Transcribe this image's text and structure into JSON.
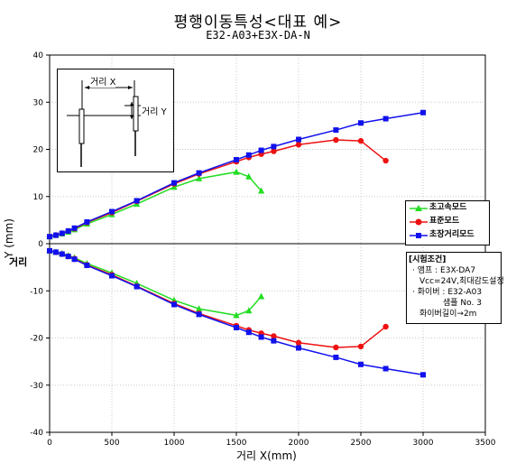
{
  "title": "평행이동특성<대표 예>",
  "subtitle": "E32-A03+E3X-DA-N",
  "chart_data": {
    "type": "line",
    "xlabel": "거리 X(mm)",
    "ylabel": "Y (mm)",
    "ylabel_extra": "거리",
    "xlim": [
      0,
      3500
    ],
    "ylim": [
      -40,
      40
    ],
    "x_ticks": [
      "0",
      "500",
      "1000",
      "1500",
      "2000",
      "2500",
      "3000",
      "3500"
    ],
    "y_ticks": [
      "40",
      "30",
      "20",
      "10",
      "0",
      "-10",
      "-20",
      "-30",
      "-40"
    ],
    "grid": true,
    "legend_position": "right",
    "series": [
      {
        "name": "초고속모드",
        "color": "#22dd22",
        "marker": "triangle",
        "x": [
          0,
          50,
          100,
          150,
          200,
          300,
          500,
          700,
          1000,
          1200,
          1500,
          1600,
          1700
        ],
        "y_upper": [
          1.5,
          1.8,
          2.1,
          2.5,
          3,
          4.2,
          6.2,
          8.4,
          12,
          13.8,
          15.2,
          14.2,
          11.2
        ],
        "y_lower": [
          -1.5,
          -1.8,
          -2.1,
          -2.5,
          -3,
          -4.2,
          -6.2,
          -8.4,
          -12,
          -13.8,
          -15.2,
          -14.2,
          -11.2
        ]
      },
      {
        "name": "표준모드",
        "color": "#ee1111",
        "marker": "circle",
        "x": [
          0,
          50,
          100,
          150,
          200,
          300,
          500,
          700,
          1000,
          1200,
          1500,
          1600,
          1700,
          1800,
          2000,
          2300,
          2500,
          2700
        ],
        "y_upper": [
          1.5,
          1.8,
          2.2,
          2.7,
          3.2,
          4.5,
          6.6,
          9,
          12.7,
          14.8,
          17.4,
          18.3,
          19,
          19.6,
          21,
          22,
          21.8,
          17.6
        ],
        "y_lower": [
          -1.5,
          -1.8,
          -2.2,
          -2.7,
          -3.2,
          -4.5,
          -6.6,
          -9,
          -12.7,
          -14.8,
          -17.4,
          -18.3,
          -19,
          -19.6,
          -21,
          -22,
          -21.8,
          -17.6
        ]
      },
      {
        "name": "초장거리모드",
        "color": "#1111ee",
        "marker": "square",
        "x": [
          0,
          50,
          100,
          150,
          200,
          300,
          500,
          700,
          1000,
          1200,
          1500,
          1600,
          1700,
          1800,
          2000,
          2300,
          2500,
          2700,
          3000
        ],
        "y_upper": [
          1.5,
          1.8,
          2.2,
          2.7,
          3.3,
          4.6,
          6.8,
          9.1,
          12.9,
          15.0,
          17.8,
          18.8,
          19.8,
          20.6,
          22.1,
          24.1,
          25.6,
          26.5,
          27.8
        ],
        "y_lower": [
          -1.5,
          -1.8,
          -2.2,
          -2.7,
          -3.3,
          -4.6,
          -6.8,
          -9.1,
          -12.9,
          -15.0,
          -17.8,
          -18.8,
          -19.8,
          -20.6,
          -22.1,
          -24.1,
          -25.6,
          -26.5,
          -27.8
        ]
      }
    ]
  },
  "conditions": {
    "heading": "[시험조건]",
    "amp": "· 앰프 : E3X-DA7",
    "vcc": "Vcc=24V,최대감도설정",
    "fiber": "· 화이버 : E32-A03",
    "sample": "샘플 No. 3",
    "fiber_length": "화이버길이→2m"
  },
  "inset": {
    "label_x": "거리 X",
    "label_y": "거리 Y"
  }
}
